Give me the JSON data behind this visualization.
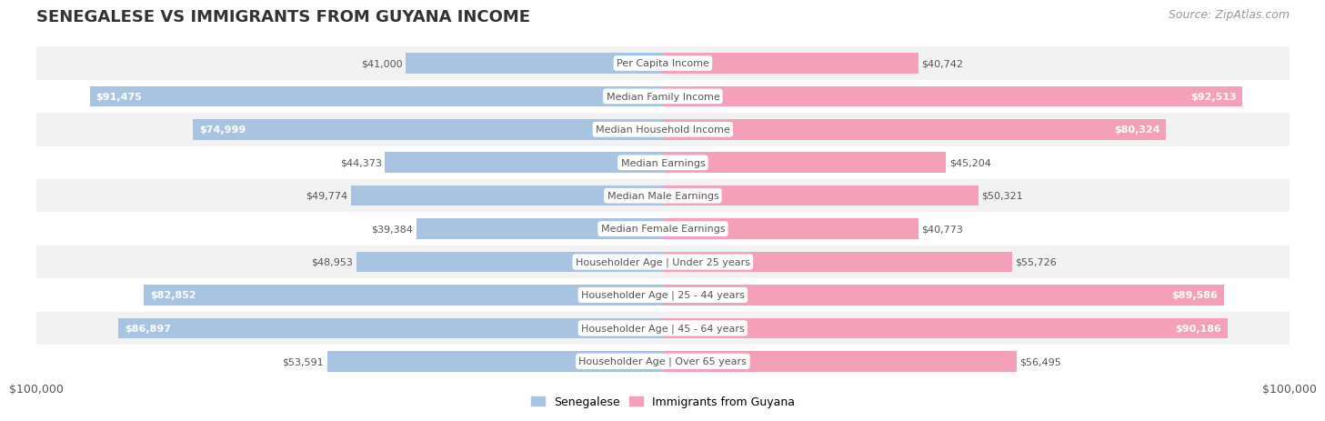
{
  "title": "SENEGALESE VS IMMIGRANTS FROM GUYANA INCOME",
  "source": "Source: ZipAtlas.com",
  "categories": [
    "Per Capita Income",
    "Median Family Income",
    "Median Household Income",
    "Median Earnings",
    "Median Male Earnings",
    "Median Female Earnings",
    "Householder Age | Under 25 years",
    "Householder Age | 25 - 44 years",
    "Householder Age | 45 - 64 years",
    "Householder Age | Over 65 years"
  ],
  "senegalese_values": [
    41000,
    91475,
    74999,
    44373,
    49774,
    39384,
    48953,
    82852,
    86897,
    53591
  ],
  "guyana_values": [
    40742,
    92513,
    80324,
    45204,
    50321,
    40773,
    55726,
    89586,
    90186,
    56495
  ],
  "senegalese_labels": [
    "$41,000",
    "$91,475",
    "$74,999",
    "$44,373",
    "$49,774",
    "$39,384",
    "$48,953",
    "$82,852",
    "$86,897",
    "$53,591"
  ],
  "guyana_labels": [
    "$40,742",
    "$92,513",
    "$80,324",
    "$45,204",
    "$50,321",
    "$40,773",
    "$55,726",
    "$89,586",
    "$90,186",
    "$56,495"
  ],
  "max_value": 100000,
  "senegalese_color": "#a8c4e0",
  "guyana_color": "#f4a0b8",
  "bar_height": 0.62,
  "row_bg_colors": [
    "#f2f2f2",
    "#ffffff",
    "#f2f2f2",
    "#ffffff",
    "#f2f2f2",
    "#ffffff",
    "#f2f2f2",
    "#ffffff",
    "#f2f2f2",
    "#ffffff"
  ],
  "label_color_inside": "#ffffff",
  "label_color_outside": "#555555",
  "center_label_color": "#555555",
  "threshold_inside": 58000,
  "legend_senegalese": "Senegalese",
  "legend_guyana": "Immigrants from Guyana",
  "x_tick_label_left": "$100,000",
  "x_tick_label_right": "$100,000",
  "title_fontsize": 13,
  "source_fontsize": 9,
  "label_fontsize": 8,
  "cat_fontsize": 8
}
